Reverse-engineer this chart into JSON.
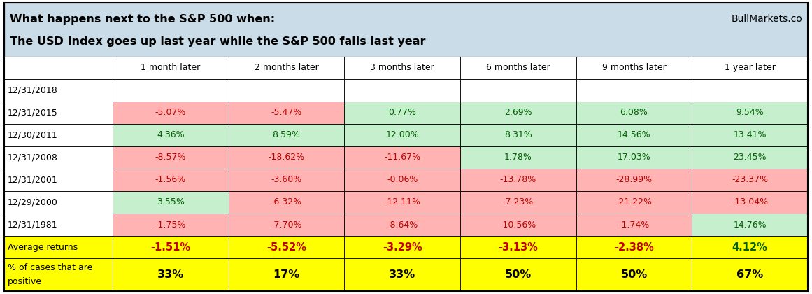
{
  "title_line1": "What happens next to the S&P 500 when:",
  "title_line2": "The USD Index goes up last year while the S&P 500 falls last year",
  "brand": "BullMarkets.co",
  "header_bg": "#c9dce8",
  "columns": [
    "",
    "1 month later",
    "2 months later",
    "3 months later",
    "6 months later",
    "9 months later",
    "1 year later"
  ],
  "rows": [
    {
      "date": "12/31/2018",
      "values": [
        "",
        "",
        "",
        "",
        "",
        ""
      ]
    },
    {
      "date": "12/31/2015",
      "values": [
        "-5.07%",
        "-5.47%",
        "0.77%",
        "2.69%",
        "6.08%",
        "9.54%"
      ]
    },
    {
      "date": "12/30/2011",
      "values": [
        "4.36%",
        "8.59%",
        "12.00%",
        "8.31%",
        "14.56%",
        "13.41%"
      ]
    },
    {
      "date": "12/31/2008",
      "values": [
        "-8.57%",
        "-18.62%",
        "-11.67%",
        "1.78%",
        "17.03%",
        "23.45%"
      ]
    },
    {
      "date": "12/31/2001",
      "values": [
        "-1.56%",
        "-3.60%",
        "-0.06%",
        "-13.78%",
        "-28.99%",
        "-23.37%"
      ]
    },
    {
      "date": "12/29/2000",
      "values": [
        "3.55%",
        "-6.32%",
        "-12.11%",
        "-7.23%",
        "-21.22%",
        "-13.04%"
      ]
    },
    {
      "date": "12/31/1981",
      "values": [
        "-1.75%",
        "-7.70%",
        "-8.64%",
        "-10.56%",
        "-1.74%",
        "14.76%"
      ]
    }
  ],
  "avg_row_label": "Average returns",
  "avg_values": [
    "-1.51%",
    "-5.52%",
    "-3.29%",
    "-3.13%",
    "-2.38%",
    "4.12%"
  ],
  "pct_row_label_line1": "% of cases that are",
  "pct_row_label_line2": "positive",
  "pct_values": [
    "33%",
    "17%",
    "33%",
    "50%",
    "50%",
    "67%"
  ],
  "positive_bg": "#c6efce",
  "negative_bg": "#ffb3b3",
  "positive_color": "#006100",
  "negative_color": "#c00000",
  "yellow_bg": "#ffff00",
  "white_bg": "#ffffff",
  "border_color": "#000000"
}
